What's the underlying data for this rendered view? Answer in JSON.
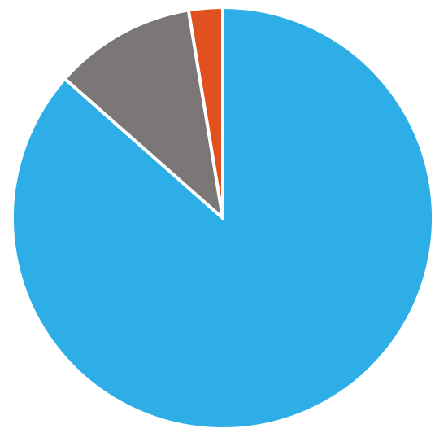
{
  "chart_data": {
    "type": "pie",
    "categories": [
      "",
      "",
      ""
    ],
    "values": [
      86.5,
      10.9,
      2.6
    ],
    "colors": [
      "#2eaee6",
      "#7b7777",
      "#e1511f"
    ],
    "start": "top",
    "direction": "clockwise",
    "legend": "none",
    "title": ""
  }
}
